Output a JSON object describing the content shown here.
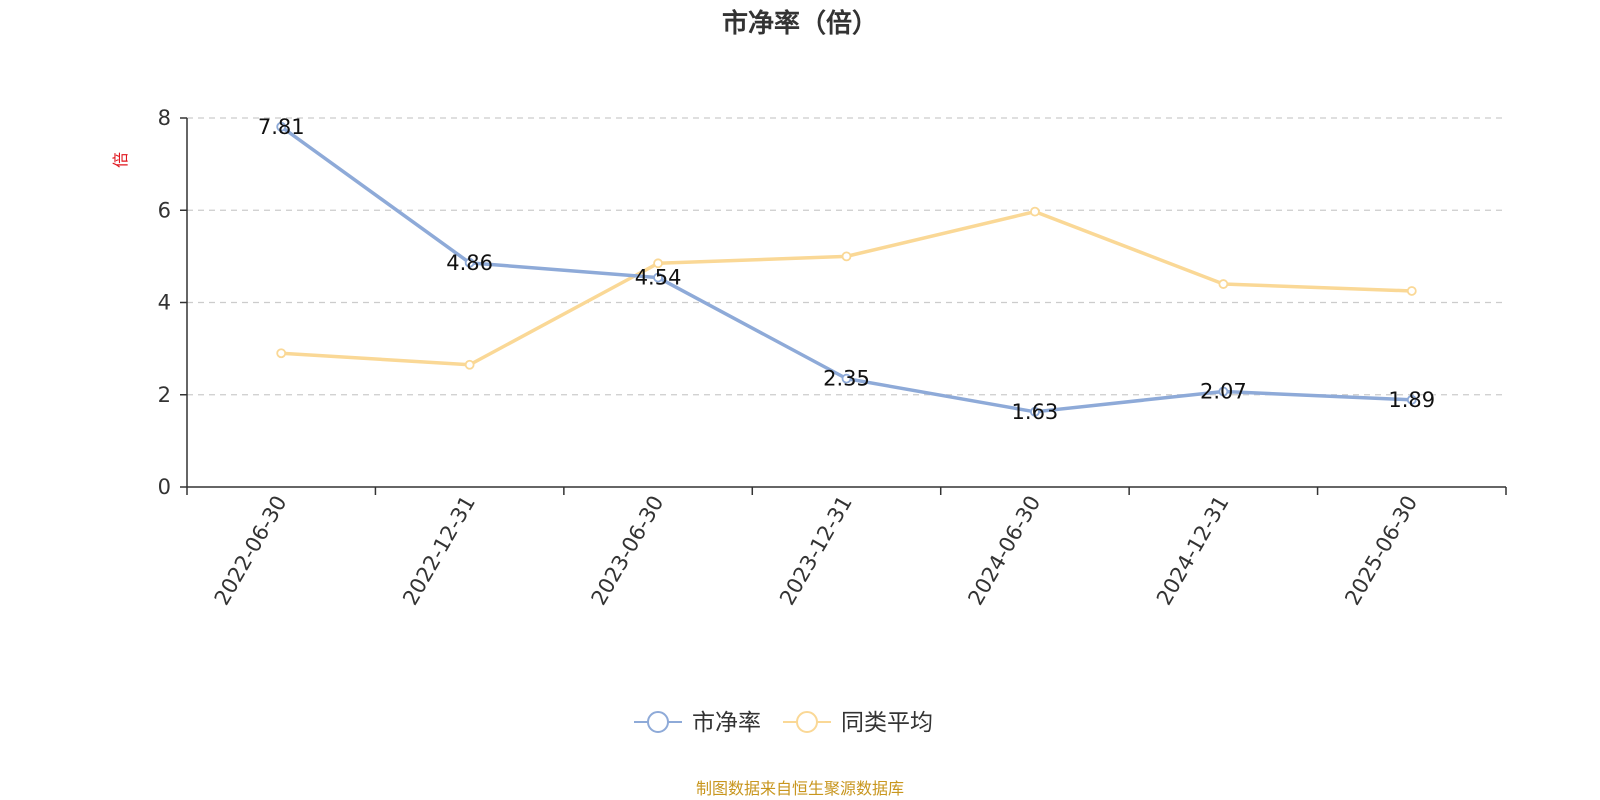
{
  "chart_data": {
    "type": "line",
    "title": "市净率（倍）",
    "ylabel": "倍",
    "xlabel": "",
    "categories": [
      "2022-06-30",
      "2022-12-31",
      "2023-06-30",
      "2023-12-31",
      "2024-06-30",
      "2024-12-31",
      "2025-06-30"
    ],
    "ylim": [
      0,
      8
    ],
    "yticks": [
      0,
      2,
      4,
      6,
      8
    ],
    "grid": true,
    "legend_position": "bottom-center",
    "series": [
      {
        "name": "市净率",
        "values": [
          7.81,
          4.86,
          4.54,
          2.35,
          1.63,
          2.07,
          1.89
        ],
        "show_labels": true,
        "color": "#8eaad8"
      },
      {
        "name": "同类平均",
        "values": [
          2.9,
          2.65,
          4.85,
          5.0,
          5.97,
          4.4,
          4.25
        ],
        "show_labels": false,
        "color": "#fad896"
      }
    ],
    "labels": [
      "7.81",
      "4.86",
      "4.54",
      "2.35",
      "1.63",
      "2.07",
      "1.89"
    ],
    "source_note": "制图数据来自恒生聚源数据库"
  },
  "colors": {
    "axis": "#333333",
    "grid": "#cccccc",
    "ylabel": "#e0161e",
    "source": "#c8961e"
  }
}
